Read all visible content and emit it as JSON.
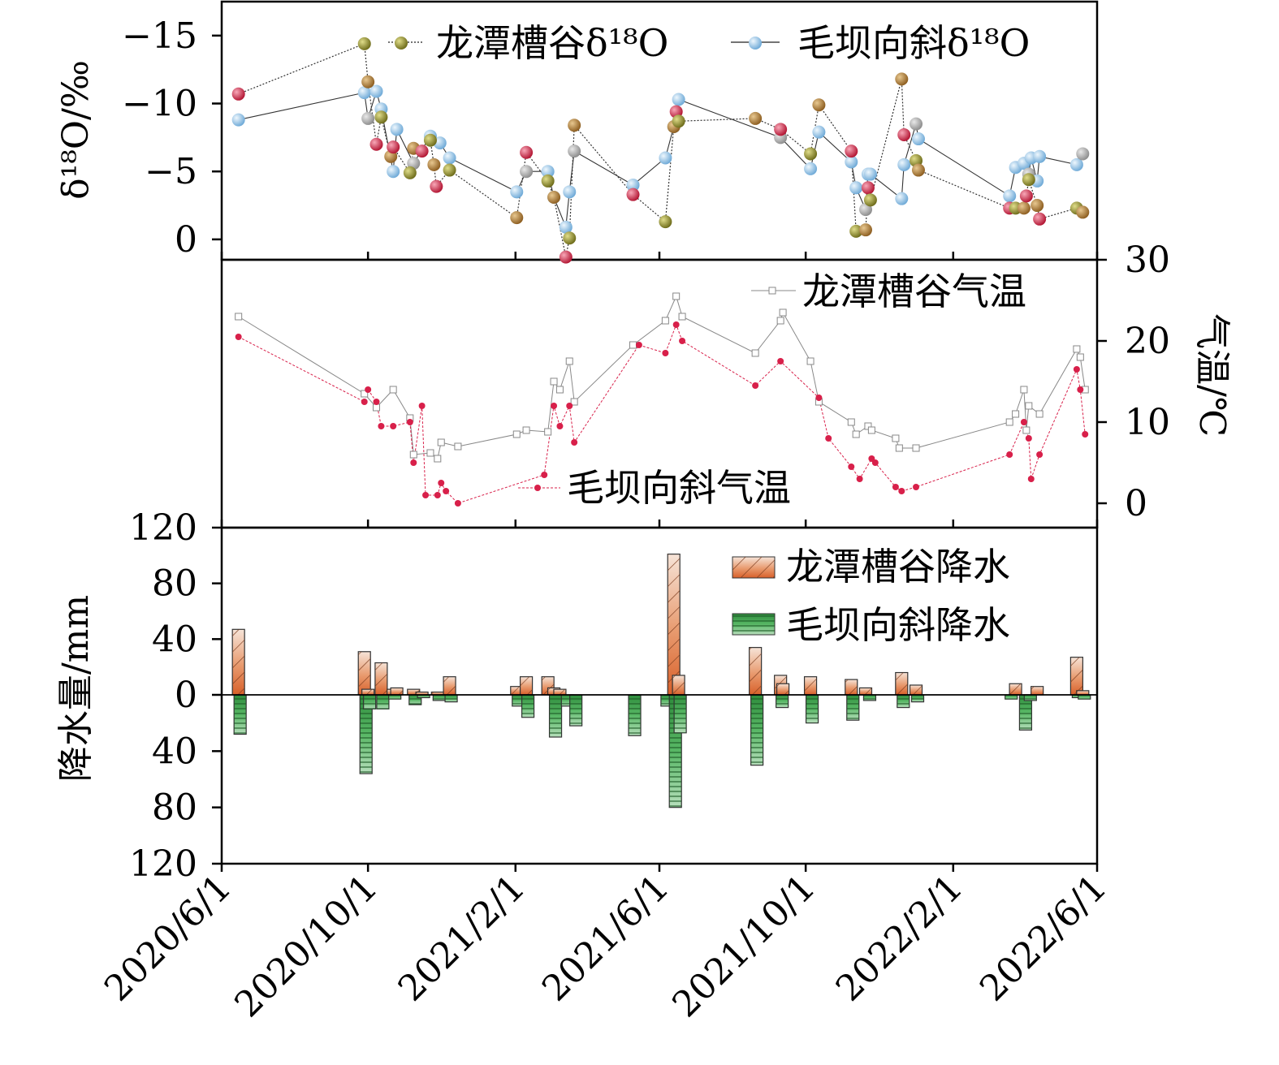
{
  "x_ticks": [
    "2020/6/1",
    "2020/10/1",
    "2021/2/1",
    "2021/6/1",
    "2021/10/1",
    "2022/2/1",
    "2022/6/1"
  ],
  "colors": {
    "lt_d18o_fill": "#8c8a2a",
    "mb_d18o_fill": "#8fc3e6",
    "red_marker": "#d8204a",
    "lt_temp": "#888888",
    "mb_temp": "#d8204a",
    "lt_precip": "#e0885a",
    "mb_precip": "#3aa04a"
  },
  "chart_data": [
    {
      "type": "scatter",
      "panel": "d18o",
      "ylabel": "δ¹⁸O/‰",
      "ylim": [
        1.5,
        -17.5
      ],
      "yticks": [
        "-15",
        "-10",
        "-5",
        "0"
      ],
      "legend": [
        "龙潭槽谷δ¹⁸O",
        "毛坝向斜δ¹⁸O"
      ],
      "legend_placement": "top-right",
      "series": [
        {
          "name": "龙潭槽谷δ¹⁸O",
          "points": [
            [
              "2020-06-15",
              -10.7
            ],
            [
              "2020-09-28",
              -14.4
            ],
            [
              "2020-10-01",
              -11.6
            ],
            [
              "2020-10-08",
              -7.0
            ],
            [
              "2020-10-12",
              -9.0
            ],
            [
              "2020-10-20",
              -6.1
            ],
            [
              "2020-10-22",
              -6.8
            ],
            [
              "2020-11-05",
              -4.9
            ],
            [
              "2020-11-08",
              -6.7
            ],
            [
              "2020-11-15",
              -6.5
            ],
            [
              "2020-11-22",
              -7.3
            ],
            [
              "2020-11-25",
              -5.5
            ],
            [
              "2020-11-27",
              -3.9
            ],
            [
              "2020-12-08",
              -5.1
            ],
            [
              "2021-02-02",
              -1.6
            ],
            [
              "2021-02-10",
              -6.4
            ],
            [
              "2021-02-28",
              -4.3
            ],
            [
              "2021-03-05",
              -3.1
            ],
            [
              "2021-03-15",
              1.3
            ],
            [
              "2021-03-18",
              -0.1
            ],
            [
              "2021-03-22",
              -8.4
            ],
            [
              "2021-05-10",
              -3.3
            ],
            [
              "2021-06-06",
              -1.3
            ],
            [
              "2021-06-13",
              -8.3
            ],
            [
              "2021-06-15",
              -9.4
            ],
            [
              "2021-06-17",
              -8.7
            ],
            [
              "2021-08-20",
              -8.9
            ],
            [
              "2021-09-10",
              -8.1
            ],
            [
              "2021-10-05",
              -6.3
            ],
            [
              "2021-10-12",
              -9.9
            ],
            [
              "2021-11-08",
              -6.5
            ],
            [
              "2021-11-12",
              -0.6
            ],
            [
              "2021-11-20",
              -0.7
            ],
            [
              "2021-11-22",
              -3.8
            ],
            [
              "2021-11-24",
              -2.9
            ],
            [
              "2021-12-20",
              -11.8
            ],
            [
              "2021-12-22",
              -7.7
            ],
            [
              "2022-01-01",
              -5.8
            ],
            [
              "2022-01-03",
              -5.1
            ],
            [
              "2022-03-20",
              -2.3
            ],
            [
              "2022-03-25",
              -2.3
            ],
            [
              "2022-04-01",
              -2.3
            ],
            [
              "2022-04-03",
              -3.2
            ],
            [
              "2022-04-05",
              -4.4
            ],
            [
              "2022-04-12",
              -2.5
            ],
            [
              "2022-04-14",
              -1.5
            ],
            [
              "2022-05-15",
              -2.3
            ],
            [
              "2022-05-20",
              -2.0
            ]
          ]
        },
        {
          "name": "毛坝向斜δ¹⁸O",
          "points": [
            [
              "2020-06-15",
              -8.8
            ],
            [
              "2020-09-28",
              -10.8
            ],
            [
              "2020-10-01",
              -8.9
            ],
            [
              "2020-10-08",
              -10.9
            ],
            [
              "2020-10-12",
              -9.6
            ],
            [
              "2020-10-22",
              -5.0
            ],
            [
              "2020-10-25",
              -8.1
            ],
            [
              "2020-11-08",
              -5.6
            ],
            [
              "2020-11-22",
              -7.6
            ],
            [
              "2020-11-30",
              -7.1
            ],
            [
              "2020-12-08",
              -6.0
            ],
            [
              "2021-02-02",
              -3.5
            ],
            [
              "2021-02-10",
              -5.0
            ],
            [
              "2021-02-28",
              -5.0
            ],
            [
              "2021-03-05",
              -3.1
            ],
            [
              "2021-03-15",
              -0.9
            ],
            [
              "2021-03-18",
              -3.5
            ],
            [
              "2021-03-22",
              -6.5
            ],
            [
              "2021-05-10",
              -4.0
            ],
            [
              "2021-06-06",
              -6.0
            ],
            [
              "2021-06-13",
              -8.3
            ],
            [
              "2021-06-17",
              -10.3
            ],
            [
              "2021-09-10",
              -7.5
            ],
            [
              "2021-10-05",
              -5.2
            ],
            [
              "2021-10-12",
              -7.9
            ],
            [
              "2021-11-08",
              -5.7
            ],
            [
              "2021-11-12",
              -3.8
            ],
            [
              "2021-11-20",
              -2.2
            ],
            [
              "2021-11-22",
              -4.8
            ],
            [
              "2021-11-24",
              -4.8
            ],
            [
              "2021-12-20",
              -3.0
            ],
            [
              "2021-12-22",
              -5.5
            ],
            [
              "2022-01-01",
              -8.5
            ],
            [
              "2022-01-03",
              -7.4
            ],
            [
              "2022-03-20",
              -3.2
            ],
            [
              "2022-03-25",
              -5.3
            ],
            [
              "2022-04-01",
              -5.6
            ],
            [
              "2022-04-05",
              -4.8
            ],
            [
              "2022-04-07",
              -6.0
            ],
            [
              "2022-04-12",
              -4.3
            ],
            [
              "2022-04-14",
              -6.1
            ],
            [
              "2022-05-15",
              -5.5
            ],
            [
              "2022-05-20",
              -6.3
            ]
          ]
        }
      ]
    },
    {
      "type": "line",
      "panel": "temperature",
      "ylabel": "气温/℃",
      "ylim": [
        -3,
        30
      ],
      "yticks": [
        "0",
        "10",
        "20",
        "30"
      ],
      "legend_placement": "inline",
      "series": [
        {
          "name": "龙潭槽谷气温",
          "points": [
            [
              "2020-06-15",
              23.0
            ],
            [
              "2020-09-28",
              13.5
            ],
            [
              "2020-10-08",
              11.8
            ],
            [
              "2020-10-22",
              14.0
            ],
            [
              "2020-11-05",
              10.5
            ],
            [
              "2020-11-08",
              6.0
            ],
            [
              "2020-11-22",
              6.2
            ],
            [
              "2020-11-28",
              5.5
            ],
            [
              "2020-12-01",
              7.5
            ],
            [
              "2020-12-15",
              7.0
            ],
            [
              "2021-02-02",
              8.5
            ],
            [
              "2021-02-10",
              9.0
            ],
            [
              "2021-02-28",
              8.8
            ],
            [
              "2021-03-05",
              15.0
            ],
            [
              "2021-03-10",
              14.0
            ],
            [
              "2021-03-18",
              17.5
            ],
            [
              "2021-03-22",
              12.5
            ],
            [
              "2021-05-10",
              19.5
            ],
            [
              "2021-06-06",
              22.5
            ],
            [
              "2021-06-15",
              25.5
            ],
            [
              "2021-06-20",
              23.0
            ],
            [
              "2021-08-20",
              18.5
            ],
            [
              "2021-09-10",
              22.5
            ],
            [
              "2021-09-12",
              23.5
            ],
            [
              "2021-10-05",
              17.5
            ],
            [
              "2021-10-12",
              12.5
            ],
            [
              "2021-11-08",
              10.0
            ],
            [
              "2021-11-12",
              8.5
            ],
            [
              "2021-11-22",
              9.5
            ],
            [
              "2021-11-25",
              9.0
            ],
            [
              "2021-12-15",
              8.0
            ],
            [
              "2021-12-18",
              6.8
            ],
            [
              "2022-01-01",
              6.8
            ],
            [
              "2022-03-20",
              10.0
            ],
            [
              "2022-03-25",
              11.0
            ],
            [
              "2022-04-01",
              14.0
            ],
            [
              "2022-04-03",
              9.0
            ],
            [
              "2022-04-05",
              12.0
            ],
            [
              "2022-04-14",
              11.0
            ],
            [
              "2022-05-15",
              19.0
            ],
            [
              "2022-05-18",
              18.0
            ],
            [
              "2022-05-22",
              14.0
            ]
          ]
        },
        {
          "name": "毛坝向斜气温",
          "points": [
            [
              "2020-06-15",
              20.5
            ],
            [
              "2020-09-28",
              12.5
            ],
            [
              "2020-10-01",
              14.0
            ],
            [
              "2020-10-08",
              12.5
            ],
            [
              "2020-10-12",
              9.5
            ],
            [
              "2020-10-22",
              9.5
            ],
            [
              "2020-11-05",
              10.0
            ],
            [
              "2020-11-08",
              5.0
            ],
            [
              "2020-11-15",
              12.0
            ],
            [
              "2020-11-18",
              1.0
            ],
            [
              "2020-11-28",
              1.0
            ],
            [
              "2020-12-01",
              2.5
            ],
            [
              "2020-12-05",
              1.5
            ],
            [
              "2020-12-15",
              0.0
            ],
            [
              "2021-02-25",
              3.5
            ],
            [
              "2021-03-05",
              12.0
            ],
            [
              "2021-03-10",
              9.5
            ],
            [
              "2021-03-18",
              12.0
            ],
            [
              "2021-03-22",
              7.5
            ],
            [
              "2021-05-15",
              19.5
            ],
            [
              "2021-06-06",
              18.5
            ],
            [
              "2021-06-15",
              22.0
            ],
            [
              "2021-06-20",
              20.0
            ],
            [
              "2021-08-20",
              14.5
            ],
            [
              "2021-09-10",
              17.5
            ],
            [
              "2021-10-12",
              13.0
            ],
            [
              "2021-10-20",
              8.0
            ],
            [
              "2021-11-08",
              4.5
            ],
            [
              "2021-11-15",
              3.0
            ],
            [
              "2021-11-25",
              5.5
            ],
            [
              "2021-11-28",
              5.0
            ],
            [
              "2021-12-15",
              2.0
            ],
            [
              "2021-12-20",
              1.5
            ],
            [
              "2022-01-01",
              2.0
            ],
            [
              "2022-03-20",
              6.0
            ],
            [
              "2022-04-01",
              10.0
            ],
            [
              "2022-04-05",
              8.0
            ],
            [
              "2022-04-07",
              3.0
            ],
            [
              "2022-04-14",
              6.0
            ],
            [
              "2022-05-15",
              16.5
            ],
            [
              "2022-05-18",
              14.0
            ],
            [
              "2022-05-22",
              8.5
            ]
          ]
        }
      ]
    },
    {
      "type": "bar",
      "panel": "precipitation",
      "ylabel": "降水量/mm",
      "ylim_up": 120,
      "ylim_down": 120,
      "yticks": [
        "120",
        "80",
        "40",
        "0",
        "40",
        "80",
        "120"
      ],
      "legend": [
        "龙潭槽谷降水",
        "毛坝向斜降水"
      ],
      "legend_placement": "top-right",
      "series": [
        {
          "name": "龙潭槽谷降水",
          "direction": "up",
          "points": [
            [
              "2020-06-15",
              47
            ],
            [
              "2020-09-28",
              31
            ],
            [
              "2020-10-01",
              4
            ],
            [
              "2020-10-12",
              23
            ],
            [
              "2020-10-22",
              4
            ],
            [
              "2020-10-25",
              5
            ],
            [
              "2020-11-08",
              4
            ],
            [
              "2020-11-15",
              2
            ],
            [
              "2020-11-28",
              2
            ],
            [
              "2020-12-08",
              13
            ],
            [
              "2021-02-02",
              6
            ],
            [
              "2021-02-10",
              13
            ],
            [
              "2021-02-28",
              13
            ],
            [
              "2021-03-05",
              5
            ],
            [
              "2021-03-10",
              4
            ],
            [
              "2021-06-13",
              101
            ],
            [
              "2021-06-17",
              14
            ],
            [
              "2021-08-20",
              34
            ],
            [
              "2021-09-10",
              14
            ],
            [
              "2021-09-12",
              8
            ],
            [
              "2021-10-05",
              13
            ],
            [
              "2021-11-08",
              11
            ],
            [
              "2021-11-20",
              5
            ],
            [
              "2021-12-20",
              16
            ],
            [
              "2022-01-01",
              7
            ],
            [
              "2022-03-25",
              8
            ],
            [
              "2022-04-12",
              6
            ],
            [
              "2022-05-15",
              27
            ],
            [
              "2022-05-20",
              3
            ]
          ]
        },
        {
          "name": "毛坝向斜降水",
          "direction": "down",
          "points": [
            [
              "2020-06-15",
              28
            ],
            [
              "2020-09-28",
              56
            ],
            [
              "2020-10-01",
              10
            ],
            [
              "2020-10-12",
              10
            ],
            [
              "2020-10-22",
              3
            ],
            [
              "2020-11-08",
              7
            ],
            [
              "2020-11-15",
              2
            ],
            [
              "2020-11-28",
              4
            ],
            [
              "2020-12-08",
              5
            ],
            [
              "2021-02-02",
              8
            ],
            [
              "2021-02-10",
              16
            ],
            [
              "2021-03-05",
              30
            ],
            [
              "2021-03-15",
              8
            ],
            [
              "2021-03-22",
              22
            ],
            [
              "2021-05-10",
              29
            ],
            [
              "2021-06-06",
              8
            ],
            [
              "2021-06-13",
              80
            ],
            [
              "2021-06-17",
              27
            ],
            [
              "2021-08-20",
              50
            ],
            [
              "2021-09-10",
              9
            ],
            [
              "2021-10-05",
              20
            ],
            [
              "2021-11-08",
              18
            ],
            [
              "2021-11-22",
              4
            ],
            [
              "2021-12-20",
              9
            ],
            [
              "2022-01-01",
              5
            ],
            [
              "2022-03-20",
              3
            ],
            [
              "2022-04-01",
              25
            ],
            [
              "2022-04-05",
              4
            ],
            [
              "2022-05-15",
              2
            ],
            [
              "2022-05-20",
              3
            ]
          ]
        }
      ]
    }
  ]
}
